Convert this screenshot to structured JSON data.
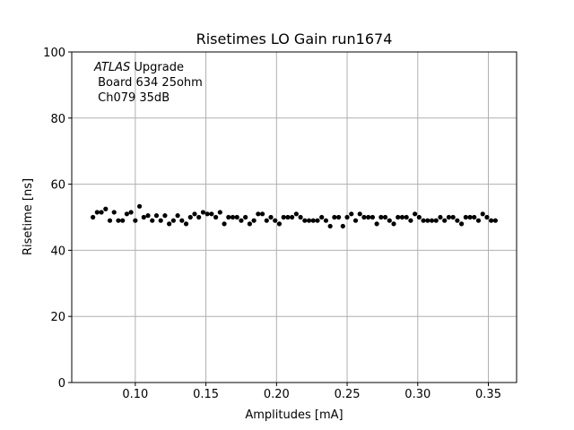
{
  "chart_data": {
    "type": "scatter",
    "title": "Risetimes LO Gain run1674",
    "xlabel": "Amplitudes [mA]",
    "ylabel": "Risetime [ns]",
    "xlim": [
      0.055,
      0.37
    ],
    "ylim": [
      0,
      100
    ],
    "grid": true,
    "x_ticks": [
      0.1,
      0.15,
      0.2,
      0.25,
      0.3,
      0.35
    ],
    "x_tick_labels": [
      "0.10",
      "0.15",
      "0.20",
      "0.25",
      "0.30",
      "0.35"
    ],
    "y_ticks": [
      0,
      20,
      40,
      60,
      80,
      100
    ],
    "y_tick_labels": [
      "0",
      "20",
      "40",
      "60",
      "80",
      "100"
    ],
    "annotations": [
      {
        "italic": "ATLAS",
        "rest": " Upgrade"
      },
      {
        "text": " Board 634 25ohm"
      },
      {
        "text": " Ch079 35dB"
      }
    ],
    "marker_color": "#000000",
    "x": [
      0.07,
      0.073,
      0.076,
      0.079,
      0.082,
      0.085,
      0.088,
      0.091,
      0.094,
      0.097,
      0.1,
      0.103,
      0.106,
      0.109,
      0.112,
      0.115,
      0.118,
      0.121,
      0.124,
      0.127,
      0.13,
      0.133,
      0.136,
      0.139,
      0.142,
      0.145,
      0.148,
      0.151,
      0.154,
      0.157,
      0.16,
      0.163,
      0.166,
      0.169,
      0.172,
      0.175,
      0.178,
      0.181,
      0.184,
      0.187,
      0.19,
      0.193,
      0.196,
      0.199,
      0.202,
      0.205,
      0.208,
      0.211,
      0.214,
      0.217,
      0.22,
      0.223,
      0.226,
      0.229,
      0.232,
      0.235,
      0.238,
      0.241,
      0.244,
      0.247,
      0.25,
      0.253,
      0.256,
      0.259,
      0.262,
      0.265,
      0.268,
      0.271,
      0.274,
      0.277,
      0.28,
      0.283,
      0.286,
      0.289,
      0.292,
      0.295,
      0.298,
      0.301,
      0.304,
      0.307,
      0.31,
      0.313,
      0.316,
      0.319,
      0.322,
      0.325,
      0.328,
      0.331,
      0.334,
      0.337,
      0.34,
      0.343,
      0.346,
      0.349,
      0.352,
      0.355
    ],
    "y": [
      50.0,
      51.5,
      51.5,
      52.5,
      49.0,
      51.5,
      49.0,
      49.0,
      51.0,
      51.5,
      49.0,
      53.3,
      50.0,
      50.5,
      49.0,
      50.5,
      49.0,
      50.5,
      48.0,
      49.0,
      50.5,
      49.0,
      48.0,
      50.0,
      51.0,
      50.0,
      51.5,
      51.0,
      51.0,
      50.0,
      51.5,
      48.0,
      50.0,
      50.0,
      50.0,
      49.0,
      50.0,
      48.0,
      49.0,
      51.0,
      51.0,
      49.0,
      50.0,
      49.0,
      48.0,
      50.0,
      50.0,
      50.0,
      51.0,
      50.0,
      49.0,
      49.0,
      49.0,
      49.0,
      50.0,
      49.0,
      47.3,
      50.0,
      50.0,
      47.3,
      50.0,
      51.0,
      49.0,
      51.0,
      50.0,
      50.0,
      50.0,
      48.0,
      50.0,
      50.0,
      49.0,
      48.0,
      50.0,
      50.0,
      50.0,
      49.0,
      51.0,
      50.0,
      49.0,
      49.0,
      49.0,
      49.0,
      50.0,
      49.0,
      50.0,
      50.0,
      49.0,
      48.0,
      50.0,
      50.0,
      50.0,
      49.0,
      51.0,
      50.0,
      49.0,
      49.0
    ]
  }
}
